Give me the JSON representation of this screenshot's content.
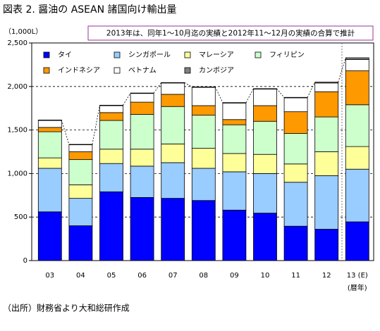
{
  "chart_data": {
    "type": "stacked-bar",
    "title": "図表 2.  醤油の ASEAN 諸国向け輸出量",
    "y_unit": "（1,000L）",
    "annotation": "2013年は、同年1～10月迄の実績と2012年11～12月の実績の合算で推計",
    "x_note": "(暦年)",
    "source": "（出所）財務省より大和総研作成",
    "categories": [
      "03",
      "04",
      "05",
      "06",
      "07",
      "08",
      "09",
      "10",
      "11",
      "12",
      "13 (E)"
    ],
    "series": [
      {
        "name": "タイ",
        "color": "#0000ff",
        "values": [
          560,
          400,
          790,
          725,
          715,
          690,
          580,
          545,
          395,
          360,
          445
        ]
      },
      {
        "name": "シンガポール",
        "color": "#99ccff",
        "values": [
          500,
          315,
          325,
          360,
          410,
          370,
          440,
          455,
          505,
          615,
          605
        ]
      },
      {
        "name": "マレーシア",
        "color": "#ffff99",
        "values": [
          120,
          155,
          165,
          195,
          215,
          230,
          210,
          220,
          210,
          275,
          260
        ]
      },
      {
        "name": "フィリピン",
        "color": "#ccffcc",
        "values": [
          300,
          290,
          330,
          400,
          430,
          380,
          330,
          380,
          350,
          400,
          480
        ]
      },
      {
        "name": "インドネシア",
        "color": "#ff9900",
        "values": [
          50,
          90,
          90,
          140,
          140,
          110,
          60,
          180,
          250,
          290,
          390
        ]
      },
      {
        "name": "ベトナム",
        "color": "#ffffff",
        "values": [
          80,
          80,
          80,
          100,
          130,
          210,
          190,
          190,
          160,
          100,
          130
        ]
      },
      {
        "name": "カンボジア",
        "color": "#808080",
        "values": [
          5,
          5,
          5,
          5,
          5,
          5,
          5,
          5,
          5,
          10,
          20
        ]
      }
    ],
    "ylim": [
      0,
      2500
    ],
    "yticks": [
      0,
      {
        "value": 500,
        "label": "500"
      },
      {
        "value": 1000,
        "label": "1,000"
      },
      {
        "value": 1500,
        "label": "1,500"
      },
      {
        "value": 2000,
        "label": "2,000"
      },
      {
        "value": 2500,
        "label": "2,500"
      }
    ],
    "grid": true,
    "legend": "top-left"
  }
}
